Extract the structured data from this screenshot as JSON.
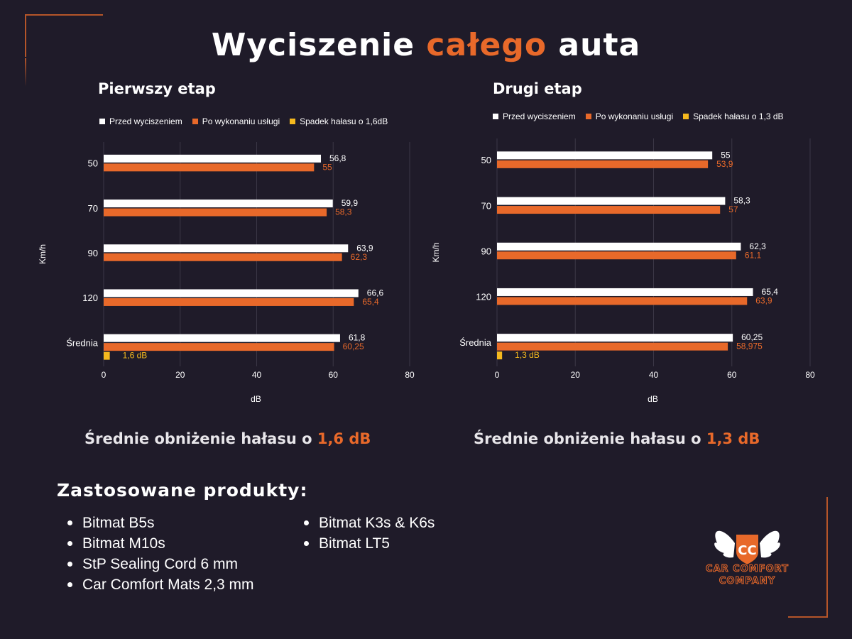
{
  "header": {
    "title_part1": "Wyciszenie",
    "title_accent": "całego",
    "title_part2": "auta"
  },
  "legend": {
    "before": "Przed wyciszeniem",
    "after": "Po wykonaniu usługi"
  },
  "colors": {
    "background": "#1f1b29",
    "before": "#ffffff",
    "after": "#e8692a",
    "drop": "#f5b91e",
    "accent": "#e8692a",
    "grid": "#3b3746"
  },
  "chart_data": [
    {
      "type": "bar",
      "orientation": "horizontal",
      "title": "Pierwszy etap",
      "categories": [
        "50",
        "70",
        "90",
        "120",
        "Średnia"
      ],
      "series": [
        {
          "name": "Przed wyciszeniem",
          "values": [
            56.8,
            59.9,
            63.9,
            66.6,
            61.8
          ],
          "labels": [
            "56,8",
            "59,9",
            "63,9",
            "66,6",
            "61,8"
          ]
        },
        {
          "name": "Po wykonaniu usługi",
          "values": [
            55,
            58.3,
            62.3,
            65.4,
            60.25
          ],
          "labels": [
            "55",
            "58,3",
            "62,3",
            "65,4",
            "60,25"
          ]
        },
        {
          "name": "Spadek hałasu o 1,6dB",
          "values": [
            null,
            null,
            null,
            null,
            1.6
          ],
          "labels": [
            "",
            "",
            "",
            "",
            "1,6 dB"
          ]
        }
      ],
      "xlabel": "dB",
      "ylabel": "Km/h",
      "xlim": [
        0,
        80
      ],
      "xticks": [
        0,
        20,
        40,
        60,
        80
      ],
      "grid": true,
      "legend_position": "top"
    },
    {
      "type": "bar",
      "orientation": "horizontal",
      "title": "Drugi etap",
      "categories": [
        "50",
        "70",
        "90",
        "120",
        "Średnia"
      ],
      "series": [
        {
          "name": "Przed wyciszeniem",
          "values": [
            55,
            58.3,
            62.3,
            65.4,
            60.25
          ],
          "labels": [
            "55",
            "58,3",
            "62,3",
            "65,4",
            "60,25"
          ]
        },
        {
          "name": "Po wykonaniu usługi",
          "values": [
            53.9,
            57,
            61.1,
            63.9,
            58.975
          ],
          "labels": [
            "53,9",
            "57",
            "61,1",
            "63,9",
            "58,975"
          ]
        },
        {
          "name": "Spadek hałasu o 1,3 dB",
          "values": [
            null,
            null,
            null,
            null,
            1.3
          ],
          "labels": [
            "",
            "",
            "",
            "",
            "1,3 dB"
          ]
        }
      ],
      "xlabel": "dB",
      "ylabel": "Km/h",
      "xlim": [
        0,
        80
      ],
      "xticks": [
        0,
        20,
        40,
        60,
        80
      ],
      "grid": true,
      "legend_position": "top"
    }
  ],
  "summaries": [
    {
      "text": "Średnie obniżenie hałasu o",
      "value": "1,6 dB"
    },
    {
      "text": "Średnie obniżenie hałasu o",
      "value": "1,3 dB"
    }
  ],
  "products": {
    "title": "Zastosowane produkty:",
    "column1": [
      "Bitmat B5s",
      "Bitmat M10s",
      "StP Sealing Cord 6 mm",
      "Car Comfort Mats 2,3 mm"
    ],
    "column2": [
      "Bitmat K3s & K6s",
      "Bitmat LT5"
    ]
  },
  "logo": {
    "monogram": "CC",
    "line1": "CAR COMFORT",
    "line2": "COMPANY"
  }
}
